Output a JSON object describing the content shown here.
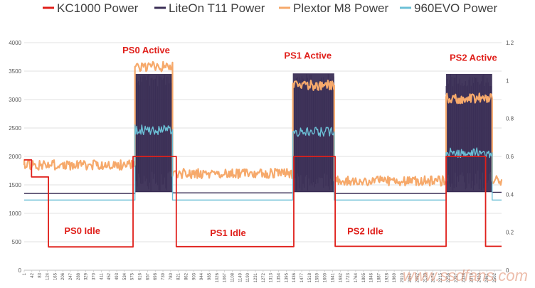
{
  "chart_data": {
    "type": "line",
    "legend": [
      {
        "name": "KC1000 Power",
        "color": "#e0201b"
      },
      {
        "name": "LiteOn T11 Power",
        "color": "#3a2e55"
      },
      {
        "name": "Plextor M8 Power",
        "color": "#f6a96b"
      },
      {
        "name": "960EVO Power",
        "color": "#6cc0d6"
      }
    ],
    "legend_position": "top",
    "grid": "horizontal",
    "y_left": {
      "min": 0,
      "max": 4000,
      "ticks": [
        "0",
        "500",
        "1000",
        "1500",
        "2000",
        "2500",
        "3000",
        "3500",
        "4000"
      ]
    },
    "y_right": {
      "min": 0,
      "max": 1.2,
      "ticks": [
        "0",
        "0.2",
        "0.4",
        "0.6",
        "0.8",
        "1",
        "1.2"
      ]
    },
    "x_ticks": [
      "1",
      "42",
      "83",
      "124",
      "165",
      "206",
      "247",
      "288",
      "329",
      "370",
      "411",
      "452",
      "493",
      "534",
      "575",
      "616",
      "657",
      "698",
      "739",
      "780",
      "821",
      "862",
      "903",
      "944",
      "985",
      "1026",
      "1067",
      "1108",
      "1149",
      "1190",
      "1231",
      "1272",
      "1313",
      "1354",
      "1395",
      "1436",
      "1477",
      "1518",
      "1559",
      "1600",
      "1641",
      "1682",
      "1723",
      "1764",
      "1805",
      "1846",
      "1887",
      "1928",
      "1969",
      "2010",
      "2051",
      "2092",
      "2133",
      "2174",
      "2215",
      "2256",
      "2297",
      "2338",
      "2379",
      "2420",
      "2461",
      "2502"
    ],
    "x_range": [
      1,
      2540
    ],
    "annotations": [
      {
        "text": "PS0 Active",
        "x": 650,
        "y": 3810
      },
      {
        "text": "PS1 Active",
        "x": 1510,
        "y": 3720
      },
      {
        "text": "PS2 Active",
        "x": 2390,
        "y": 3680
      },
      {
        "text": "PS0 Idle",
        "x": 310,
        "y": 640
      },
      {
        "text": "PS1 Idle",
        "x": 1085,
        "y": 600
      },
      {
        "text": "PS2 Idle",
        "x": 1815,
        "y": 630
      }
    ],
    "series": [
      {
        "name": "KC1000 Power",
        "axis": "left",
        "segments": [
          {
            "x0": 1,
            "x1": 40,
            "y": 1940
          },
          {
            "x0": 40,
            "x1": 130,
            "y": 1640
          },
          {
            "x0": 130,
            "x1": 580,
            "y": 410
          },
          {
            "x0": 580,
            "x1": 810,
            "y": 2000
          },
          {
            "x0": 810,
            "x1": 1435,
            "y": 415
          },
          {
            "x0": 1435,
            "x1": 1655,
            "y": 2000
          },
          {
            "x0": 1655,
            "x1": 2245,
            "y": 420
          },
          {
            "x0": 2245,
            "x1": 2455,
            "y": 2000
          },
          {
            "x0": 2455,
            "x1": 2540,
            "y": 420
          }
        ]
      },
      {
        "name": "LiteOn T11 Power",
        "axis": "left",
        "segments": [
          {
            "x0": 1,
            "x1": 590,
            "y": 1350
          },
          {
            "x0": 590,
            "x1": 790,
            "y_low": 1380,
            "y_high": 3450
          },
          {
            "x0": 790,
            "x1": 1430,
            "y": 1360
          },
          {
            "x0": 1430,
            "x1": 1650,
            "y_low": 1380,
            "y_high": 3460
          },
          {
            "x0": 1650,
            "x1": 2245,
            "y": 1350
          },
          {
            "x0": 2245,
            "x1": 2490,
            "y_low": 1380,
            "y_high": 3450
          },
          {
            "x0": 2490,
            "x1": 2540,
            "y": 1370
          }
        ]
      },
      {
        "name": "Plextor M8 Power",
        "axis": "left",
        "segments": [
          {
            "x0": 1,
            "x1": 590,
            "y": 1850
          },
          {
            "x0": 590,
            "x1": 790,
            "y": 3580
          },
          {
            "x0": 790,
            "x1": 1430,
            "y": 1700
          },
          {
            "x0": 1430,
            "x1": 1650,
            "y": 3250
          },
          {
            "x0": 1650,
            "x1": 2245,
            "y": 1570
          },
          {
            "x0": 2245,
            "x1": 2490,
            "y": 3020
          },
          {
            "x0": 2490,
            "x1": 2540,
            "y": 1580
          }
        ]
      },
      {
        "name": "960EVO Power",
        "axis": "right",
        "segments": [
          {
            "x0": 1,
            "x1": 590,
            "y": 0.37
          },
          {
            "x0": 590,
            "x1": 790,
            "y": 0.74
          },
          {
            "x0": 790,
            "x1": 1430,
            "y": 0.37
          },
          {
            "x0": 1430,
            "x1": 1650,
            "y": 0.73
          },
          {
            "x0": 1650,
            "x1": 2245,
            "y": 0.37
          },
          {
            "x0": 2245,
            "x1": 2490,
            "y": 0.62
          },
          {
            "x0": 2490,
            "x1": 2540,
            "y": 0.37
          }
        ]
      }
    ]
  },
  "watermark": "www.ssdfans.com"
}
